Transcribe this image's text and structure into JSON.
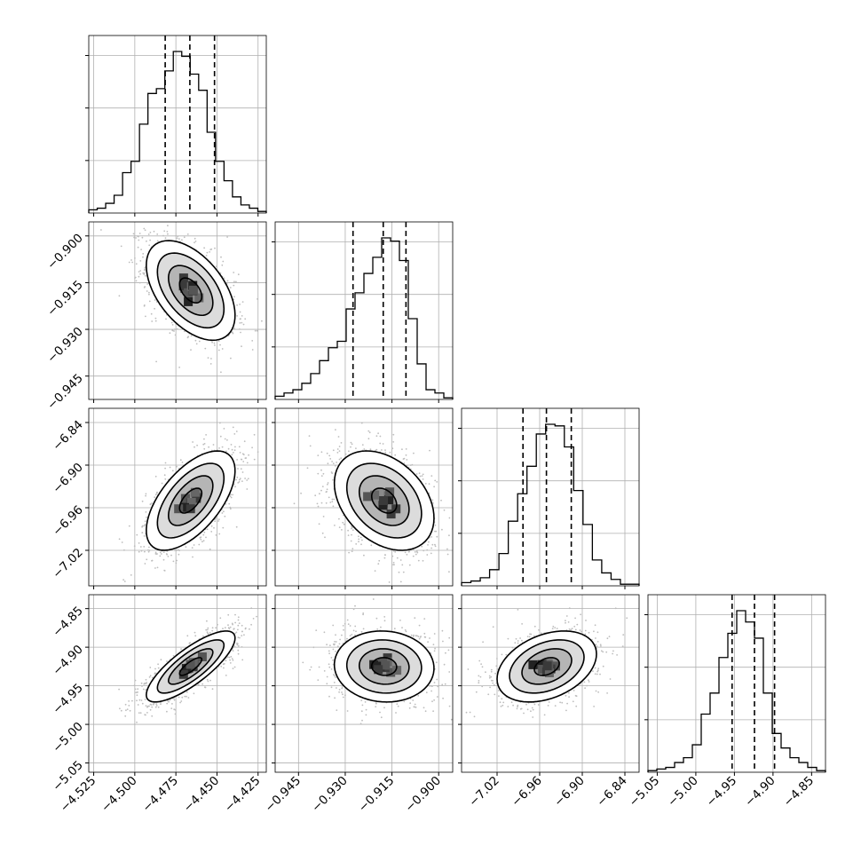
{
  "chart_data": {
    "type": "corner",
    "parameters": [
      {
        "range": [
          -4.528,
          -4.42
        ],
        "ticks": [
          -4.525,
          -4.5,
          -4.475,
          -4.45,
          -4.425
        ],
        "tick_labels": [
          "−4.525",
          "−4.500",
          "−4.475",
          "−4.450",
          "−4.425"
        ],
        "quantiles": [
          -4.4815,
          -4.4665,
          -4.4515
        ]
      },
      {
        "range": [
          -0.9525,
          -0.8955
        ],
        "ticks": [
          -0.945,
          -0.93,
          -0.915,
          -0.9
        ],
        "tick_labels": [
          "−0.945",
          "−0.930",
          "−0.915",
          "−0.900"
        ],
        "quantiles": [
          -0.9275,
          -0.9178,
          -0.9105
        ]
      },
      {
        "range": [
          -7.07,
          -6.82
        ],
        "ticks": [
          -7.02,
          -6.96,
          -6.9,
          -6.84
        ],
        "tick_labels": [
          "−7.02",
          "−6.96",
          "−6.90",
          "−6.84"
        ],
        "quantiles": [
          -6.9835,
          -6.9505,
          -6.9155
        ]
      },
      {
        "range": [
          -5.062,
          -4.832
        ],
        "ticks": [
          -5.05,
          -5.0,
          -4.95,
          -4.9,
          -4.85
        ],
        "tick_labels": [
          "−5.05",
          "−5.00",
          "−4.95",
          "−4.90",
          "−4.85"
        ],
        "quantiles": [
          -4.953,
          -4.924,
          -4.898
        ]
      }
    ],
    "histograms": [
      {
        "counts": [
          2,
          3,
          6,
          11,
          25,
          32,
          55,
          74,
          77,
          88,
          100,
          97,
          86,
          76,
          50,
          32,
          20,
          10,
          5,
          3,
          1
        ]
      },
      {
        "counts": [
          2,
          4,
          6,
          10,
          16,
          24,
          32,
          36,
          56,
          66,
          78,
          88,
          100,
          98,
          86,
          50,
          22,
          6,
          4,
          1
        ]
      },
      {
        "counts": [
          2,
          3,
          5,
          10,
          20,
          40,
          57,
          74,
          94,
          100,
          99,
          86,
          59,
          38,
          16,
          8,
          4,
          1,
          1
        ]
      },
      {
        "counts": [
          1,
          2,
          3,
          6,
          9,
          17,
          36,
          49,
          71,
          86,
          100,
          93,
          83,
          49,
          24,
          15,
          9,
          6,
          3,
          1
        ]
      }
    ],
    "pairs": [
      {
        "x": 0,
        "y": 1,
        "mean": [
          -4.466,
          -0.9175
        ],
        "sd": [
          0.0135,
          0.008
        ],
        "rho": -0.5
      },
      {
        "x": 0,
        "y": 2,
        "mean": [
          -4.466,
          -6.95
        ],
        "sd": [
          0.0135,
          0.035
        ],
        "rho": 0.6
      },
      {
        "x": 1,
        "y": 2,
        "mean": [
          -0.9175,
          -6.95
        ],
        "sd": [
          0.008,
          0.035
        ],
        "rho": -0.35
      },
      {
        "x": 0,
        "y": 3,
        "mean": [
          -4.466,
          -4.925
        ],
        "sd": [
          0.0135,
          0.023
        ],
        "rho": 0.8
      },
      {
        "x": 1,
        "y": 3,
        "mean": [
          -0.9175,
          -4.925
        ],
        "sd": [
          0.008,
          0.023
        ],
        "rho": -0.05
      },
      {
        "x": 2,
        "y": 3,
        "mean": [
          -6.95,
          -4.925
        ],
        "sd": [
          0.035,
          0.023
        ],
        "rho": 0.35
      }
    ],
    "contour_levels_sigma": [
      0.5,
      1.0,
      1.5,
      2.0
    ],
    "grid": true,
    "legend": "none"
  }
}
